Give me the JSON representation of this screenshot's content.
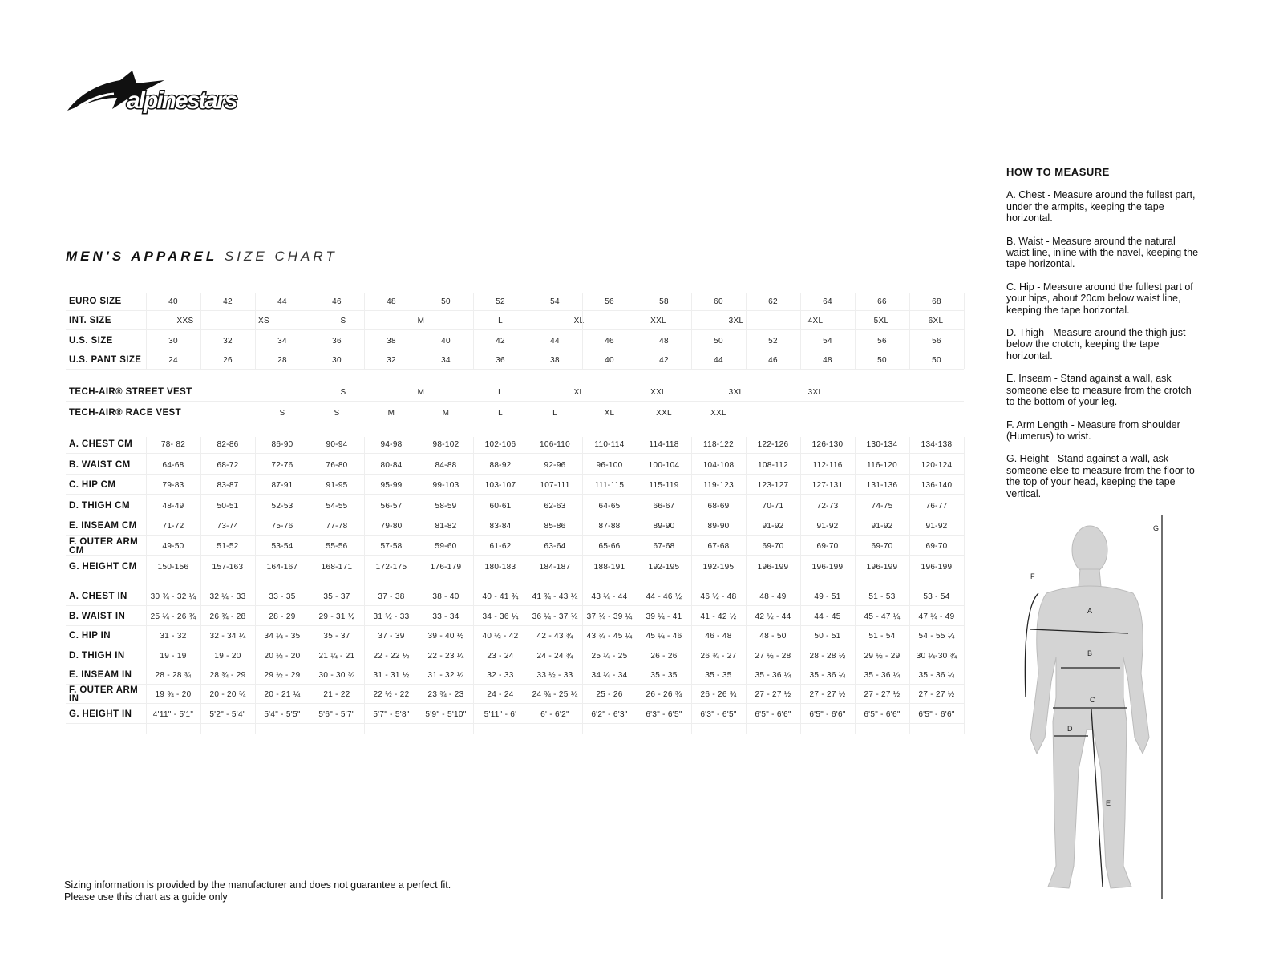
{
  "brand": {
    "logo_text": "alpinestars"
  },
  "title": {
    "bold": "MEN'S APPAREL",
    "light": "SIZE CHART"
  },
  "table": {
    "rows": [
      {
        "label": "EURO SIZE",
        "type": "cols",
        "values": [
          "40",
          "42",
          "44",
          "46",
          "48",
          "50",
          "52",
          "54",
          "56",
          "58",
          "60",
          "62",
          "64",
          "66",
          "68"
        ]
      },
      {
        "label": "INT. SIZE",
        "type": "int",
        "values": [
          "XXS",
          "XS",
          "S",
          "M",
          "L",
          "XL",
          "XXL",
          "3XL",
          "4XL",
          "5XL",
          "6XL"
        ]
      },
      {
        "label": "U.S. SIZE",
        "type": "cols",
        "values": [
          "30",
          "32",
          "34",
          "36",
          "38",
          "40",
          "42",
          "44",
          "46",
          "48",
          "50",
          "52",
          "54",
          "56",
          "56"
        ]
      },
      {
        "label": "U.S. PANT SIZE",
        "type": "cols",
        "values": [
          "24",
          "26",
          "28",
          "30",
          "32",
          "34",
          "36",
          "38",
          "40",
          "42",
          "44",
          "46",
          "48",
          "50",
          "50"
        ]
      },
      {
        "label": "TECH-AIR® STREET VEST",
        "type": "street",
        "values": [
          "S",
          "M",
          "L",
          "XL",
          "XXL",
          "3XL",
          "3XL"
        ]
      },
      {
        "label": "TECH-AIR® RACE VEST",
        "type": "race",
        "values": [
          "S",
          "S",
          "M",
          "M",
          "L",
          "L",
          "XL",
          "XXL",
          "XXL"
        ]
      },
      {
        "label": "A. CHEST CM",
        "type": "cols",
        "values": [
          "78- 82",
          "82-86",
          "86-90",
          "90-94",
          "94-98",
          "98-102",
          "102-106",
          "106-110",
          "110-114",
          "114-118",
          "118-122",
          "122-126",
          "126-130",
          "130-134",
          "134-138"
        ]
      },
      {
        "label": "B. WAIST CM",
        "type": "cols",
        "values": [
          "64-68",
          "68-72",
          "72-76",
          "76-80",
          "80-84",
          "84-88",
          "88-92",
          "92-96",
          "96-100",
          "100-104",
          "104-108",
          "108-112",
          "112-116",
          "116-120",
          "120-124"
        ]
      },
      {
        "label": "C. HIP CM",
        "type": "cols",
        "values": [
          "79-83",
          "83-87",
          "87-91",
          "91-95",
          "95-99",
          "99-103",
          "103-107",
          "107-111",
          "111-115",
          "115-119",
          "119-123",
          "123-127",
          "127-131",
          "131-136",
          "136-140"
        ]
      },
      {
        "label": "D. THIGH CM",
        "type": "cols",
        "values": [
          "48-49",
          "50-51",
          "52-53",
          "54-55",
          "56-57",
          "58-59",
          "60-61",
          "62-63",
          "64-65",
          "66-67",
          "68-69",
          "70-71",
          "72-73",
          "74-75",
          "76-77"
        ]
      },
      {
        "label": "E. INSEAM CM",
        "type": "cols",
        "values": [
          "71-72",
          "73-74",
          "75-76",
          "77-78",
          "79-80",
          "81-82",
          "83-84",
          "85-86",
          "87-88",
          "89-90",
          "89-90",
          "91-92",
          "91-92",
          "91-92",
          "91-92"
        ]
      },
      {
        "label": "F. OUTER ARM CM",
        "type": "cols",
        "values": [
          "49-50",
          "51-52",
          "53-54",
          "55-56",
          "57-58",
          "59-60",
          "61-62",
          "63-64",
          "65-66",
          "67-68",
          "67-68",
          "69-70",
          "69-70",
          "69-70",
          "69-70"
        ]
      },
      {
        "label": "G. HEIGHT CM",
        "type": "cols",
        "values": [
          "150-156",
          "157-163",
          "164-167",
          "168-171",
          "172-175",
          "176-179",
          "180-183",
          "184-187",
          "188-191",
          "192-195",
          "192-195",
          "196-199",
          "196-199",
          "196-199",
          "196-199"
        ]
      },
      {
        "label": "A. CHEST IN",
        "type": "cols",
        "values": [
          "30 ¾ - 32 ¼",
          "32 ¼ - 33",
          "33 - 35",
          "35 - 37",
          "37 - 38",
          "38 - 40",
          "40 - 41 ¾",
          "41 ¾ - 43 ¼",
          "43 ¼ - 44",
          "44 - 46 ½",
          "46 ½ - 48",
          "48 - 49",
          "49 - 51",
          "51 - 53",
          "53 - 54"
        ]
      },
      {
        "label": "B. WAIST IN",
        "type": "cols",
        "values": [
          "25 ¼ - 26 ¾",
          "26 ¾ - 28",
          "28 - 29",
          "29 - 31 ½",
          "31 ½ - 33",
          "33 - 34",
          "34 - 36 ¼",
          "36 ¼ - 37 ¾",
          "37 ¾ - 39 ¼",
          "39 ¼ - 41",
          "41 - 42 ½",
          "42 ½ - 44",
          "44 - 45",
          "45 - 47 ¼",
          "47 ¼ - 49"
        ]
      },
      {
        "label": "C. HIP IN",
        "type": "cols",
        "values": [
          "31 - 32",
          "32 - 34 ¼",
          "34 ¼ - 35",
          "35 - 37",
          "37 - 39",
          "39 - 40 ½",
          "40 ½ - 42",
          "42 - 43 ¾",
          "43 ¾ - 45 ¼",
          "45 ¼ - 46",
          "46 - 48",
          "48 - 50",
          "50 - 51",
          "51 - 54",
          "54 - 55 ¼"
        ]
      },
      {
        "label": "D. THIGH IN",
        "type": "cols",
        "values": [
          "19 - 19",
          "19 - 20",
          "20 ½ - 20",
          "21 ¼ - 21",
          "22 - 22 ½",
          "22 - 23 ¼",
          "23 - 24",
          "24 - 24 ¾",
          "25 ¼ - 25",
          "26 - 26",
          "26 ¾ - 27",
          "27 ½ - 28",
          "28 - 28 ½",
          "29 ½ - 29",
          "30 ¼-30 ¾"
        ]
      },
      {
        "label": "E. INSEAM IN",
        "type": "cols",
        "values": [
          "28 - 28 ¾",
          "28 ¾ - 29",
          "29 ½ - 29",
          "30 - 30 ¾",
          "31 - 31 ½",
          "31 - 32 ¼",
          "32 - 33",
          "33 ½ - 33",
          "34 ¼ - 34",
          "35 - 35",
          "35 - 35",
          "35 - 36 ¼",
          "35 - 36 ¼",
          "35 - 36 ¼",
          "35 - 36 ¼"
        ]
      },
      {
        "label": "F. OUTER ARM IN",
        "type": "cols",
        "values": [
          "19 ¾ - 20",
          "20 - 20 ¾",
          "20 - 21 ¼",
          "21 - 22",
          "22 ½ - 22",
          "23 ¾ - 23",
          "24 - 24",
          "24 ¾ - 25 ¼",
          "25 - 26",
          "26 - 26 ¾",
          "26 - 26 ¾",
          "27 - 27 ½",
          "27 - 27 ½",
          "27 - 27 ½",
          "27 - 27 ½"
        ]
      },
      {
        "label": "G. HEIGHT IN",
        "type": "cols",
        "values": [
          "4'11\" - 5'1\"",
          "5'2\" - 5'4\"",
          "5'4\" - 5'5\"",
          "5'6\" - 5'7\"",
          "5'7\" - 5'8\"",
          "5'9\" - 5'10\"",
          "5'11\" - 6'",
          "6' - 6'2\"",
          "6'2\" - 6'3\"",
          "6'3\" - 6'5\"",
          "6'3\" - 6'5\"",
          "6'5\" - 6'6\"",
          "6'5\" - 6'6\"",
          "6'5\" - 6'6\"",
          "6'5\" - 6'6\""
        ]
      }
    ]
  },
  "how_to_measure": {
    "heading": "HOW TO MEASURE",
    "items": [
      "A. Chest - Measure around the fullest part, under the armpits, keeping the tape horizontal.",
      "B. Waist - Measure around the natural waist line, inline with the navel, keeping the tape horizontal.",
      "C. Hip - Measure around the fullest part of your hips, about 20cm below waist line, keeping the tape horizontal.",
      "D. Thigh - Measure around the thigh just below the crotch, keeping the tape horizontal.",
      "E. Inseam - Stand against a wall, ask someone else to measure from the crotch to the bottom of your leg.",
      "F. Arm Length - Measure from shoulder (Humerus) to wrist.",
      "G. Height - Stand against a wall, ask someone else to measure from the floor to the top of your head, keeping the tape vertical."
    ]
  },
  "figure": {
    "labels": {
      "a": "A",
      "b": "B",
      "c": "C",
      "d": "D",
      "e": "E",
      "f": "F",
      "g": "G"
    }
  },
  "footer": {
    "line1": "Sizing information is provided by the manufacturer and does not guarantee a perfect fit.",
    "line2": "Please use this chart as a guide only"
  }
}
